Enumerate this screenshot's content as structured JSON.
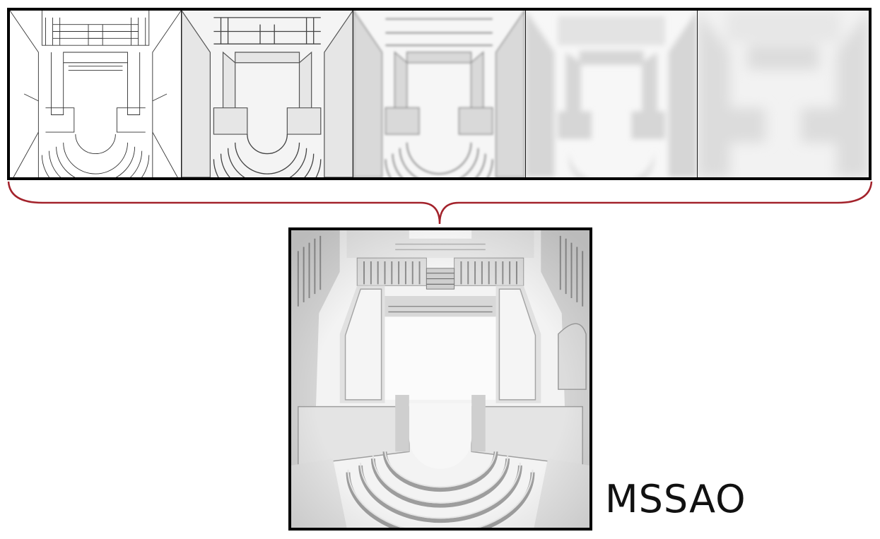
{
  "result": {
    "label": "MSSAO"
  },
  "levels": [
    {
      "style": "outline"
    },
    {
      "style": "edges"
    },
    {
      "style": "shaded"
    },
    {
      "style": "soft"
    },
    {
      "style": "blurred"
    }
  ],
  "colors": {
    "frame": "#000000",
    "brace": "#a3222b",
    "background": "#ffffff"
  }
}
